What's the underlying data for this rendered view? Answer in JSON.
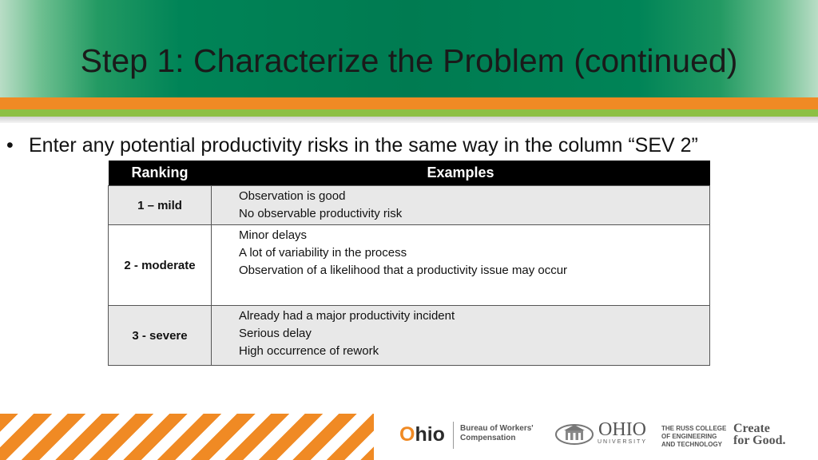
{
  "slide": {
    "title": "Step 1: Characterize the Problem (continued)",
    "bullet_glyph": "•",
    "bullet_text": "Enter any potential productivity risks in the same way in the column “SEV 2”"
  },
  "table": {
    "headers": {
      "ranking": "Ranking",
      "examples": "Examples"
    },
    "rows": [
      {
        "ranking": "1 – mild",
        "examples": [
          "Observation is good",
          "No observable productivity  risk"
        ]
      },
      {
        "ranking": "2 - moderate",
        "examples": [
          "Minor delays",
          "A lot of variability in the process",
          "Observation of a likelihood that a productivity issue may occur"
        ]
      },
      {
        "ranking": "3 - severe",
        "examples": [
          "Already had a major productivity incident",
          "Serious delay",
          "High occurrence of rework"
        ]
      }
    ]
  },
  "footer": {
    "ohio_logo": {
      "o": "O",
      "rest": "hio"
    },
    "bwc_line1": "Bureau of Workers'",
    "bwc_line2": "Compensation",
    "ou_name": "OHIO",
    "ou_sub": "UNIVERSITY",
    "russ_line1": "THE RUSS COLLEGE",
    "russ_line2": "OF ENGINEERING",
    "russ_line3": "AND TECHNOLOGY",
    "create_line1": "Create",
    "create_line2": "for Good."
  },
  "colors": {
    "header_green": "#007b51",
    "accent_orange": "#f08a24",
    "accent_green": "#8dc044",
    "table_header": "#000000",
    "row_shade": "#e8e8e8"
  }
}
